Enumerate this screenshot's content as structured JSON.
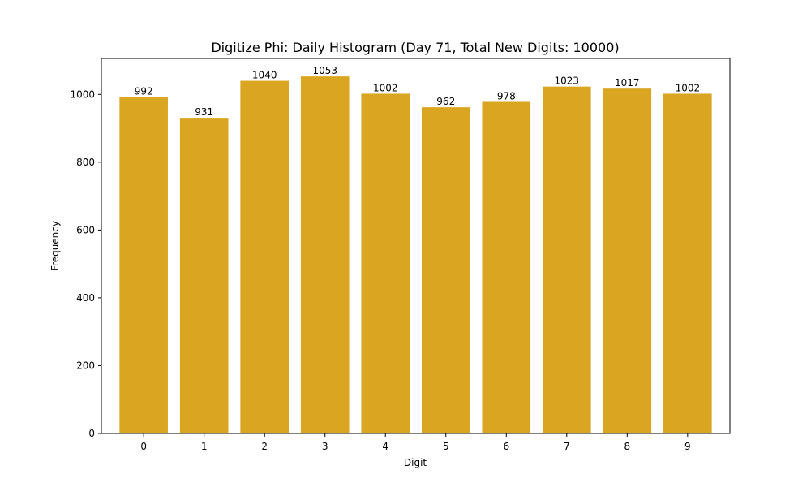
{
  "chart_data": {
    "type": "bar",
    "title": "Digitize Phi: Daily Histogram (Day 71, Total New Digits: 10000)",
    "xlabel": "Digit",
    "ylabel": "Frequency",
    "categories": [
      "0",
      "1",
      "2",
      "3",
      "4",
      "5",
      "6",
      "7",
      "8",
      "9"
    ],
    "values": [
      992,
      931,
      1040,
      1053,
      1002,
      962,
      978,
      1023,
      1017,
      1002
    ],
    "bar_labels": [
      "992",
      "931",
      "1040",
      "1053",
      "1002",
      "962",
      "978",
      "1023",
      "1017",
      "1002"
    ],
    "yticks": [
      0,
      200,
      400,
      600,
      800,
      1000
    ],
    "ylim": [
      0,
      1106
    ],
    "xlim": [
      -0.7,
      9.7
    ],
    "grid": false,
    "legend": null,
    "bar_color": "#DAA520"
  }
}
